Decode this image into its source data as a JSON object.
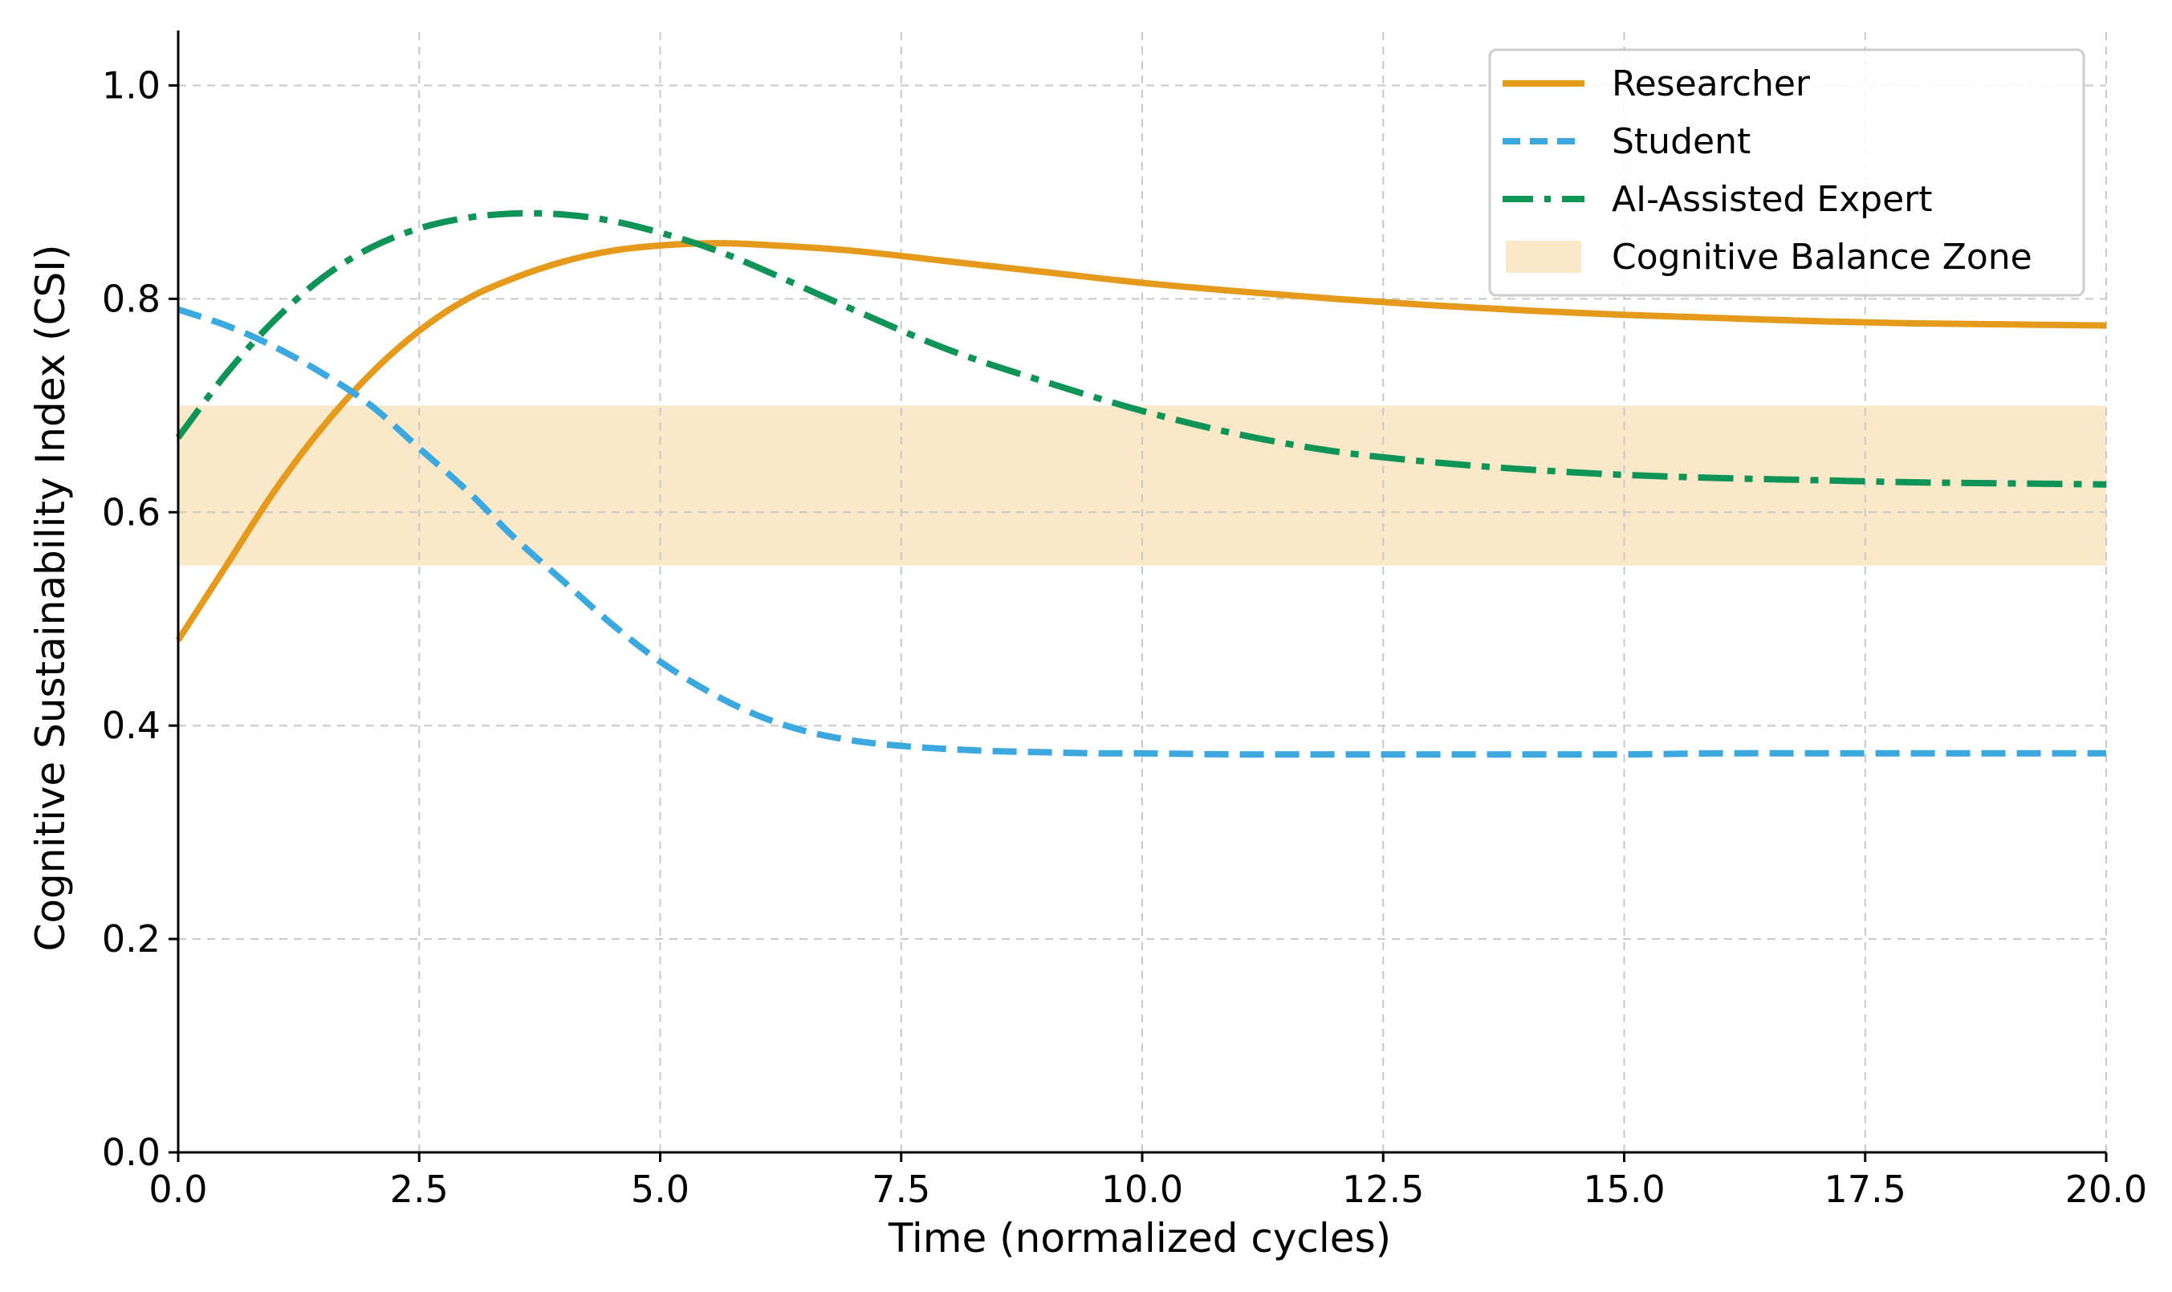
{
  "chart_data": {
    "type": "line",
    "title": "",
    "xlabel": "Time (normalized cycles)",
    "ylabel": "Cognitive Sustainability Index (CSI)",
    "xlim": [
      0,
      20
    ],
    "ylim": [
      0,
      1.05
    ],
    "xticks": [
      0,
      2.5,
      5,
      7.5,
      10,
      12.5,
      15,
      17.5,
      20
    ],
    "xtick_labels": [
      "0.0",
      "2.5",
      "5.0",
      "7.5",
      "10.0",
      "12.5",
      "15.0",
      "17.5",
      "20.0"
    ],
    "yticks": [
      0,
      0.2,
      0.4,
      0.6,
      0.8,
      1.0
    ],
    "ytick_labels": [
      "0.0",
      "0.2",
      "0.4",
      "0.6",
      "0.8",
      "1.0"
    ],
    "grid": true,
    "legend_position": "top-right",
    "band": {
      "name": "Cognitive Balance Zone",
      "y_range": [
        0.55,
        0.7
      ],
      "color": "#f9e9c8"
    },
    "series": [
      {
        "name": "Researcher",
        "style": "solid",
        "color": "#e69a1c",
        "x": [
          0,
          0.5,
          1,
          1.5,
          2,
          2.5,
          3,
          3.5,
          4,
          4.5,
          5,
          5.5,
          6,
          7,
          8,
          9,
          10,
          11,
          12,
          13,
          14,
          15,
          16,
          17,
          18,
          19,
          20
        ],
        "y": [
          0.48,
          0.55,
          0.62,
          0.68,
          0.73,
          0.77,
          0.8,
          0.82,
          0.835,
          0.845,
          0.85,
          0.852,
          0.851,
          0.845,
          0.835,
          0.825,
          0.815,
          0.807,
          0.8,
          0.794,
          0.789,
          0.785,
          0.782,
          0.779,
          0.777,
          0.776,
          0.775
        ]
      },
      {
        "name": "Student",
        "style": "dashed",
        "color": "#3ba9e0",
        "x": [
          0,
          0.5,
          1,
          1.5,
          2,
          2.5,
          3,
          3.5,
          4,
          4.5,
          5,
          5.5,
          6,
          6.5,
          7,
          7.5,
          8,
          8.5,
          9,
          9.5,
          10,
          11,
          12,
          13,
          14,
          15,
          16,
          17,
          18,
          19,
          20
        ],
        "y": [
          0.79,
          0.775,
          0.755,
          0.73,
          0.7,
          0.66,
          0.62,
          0.575,
          0.535,
          0.495,
          0.46,
          0.432,
          0.41,
          0.395,
          0.386,
          0.381,
          0.378,
          0.376,
          0.375,
          0.374,
          0.374,
          0.373,
          0.373,
          0.373,
          0.373,
          0.373,
          0.374,
          0.374,
          0.374,
          0.374,
          0.374
        ]
      },
      {
        "name": "AI-Assisted Expert",
        "style": "dashdot",
        "color": "#0f9457",
        "x": [
          0,
          0.5,
          1,
          1.5,
          2,
          2.5,
          3,
          3.5,
          4,
          4.5,
          5,
          5.5,
          6,
          7,
          8,
          9,
          10,
          11,
          12,
          13,
          14,
          15,
          16,
          17,
          18,
          19,
          20
        ],
        "y": [
          0.67,
          0.73,
          0.78,
          0.82,
          0.848,
          0.866,
          0.876,
          0.88,
          0.879,
          0.873,
          0.862,
          0.848,
          0.83,
          0.79,
          0.752,
          0.722,
          0.695,
          0.673,
          0.657,
          0.647,
          0.64,
          0.635,
          0.632,
          0.63,
          0.628,
          0.627,
          0.626
        ]
      }
    ]
  }
}
